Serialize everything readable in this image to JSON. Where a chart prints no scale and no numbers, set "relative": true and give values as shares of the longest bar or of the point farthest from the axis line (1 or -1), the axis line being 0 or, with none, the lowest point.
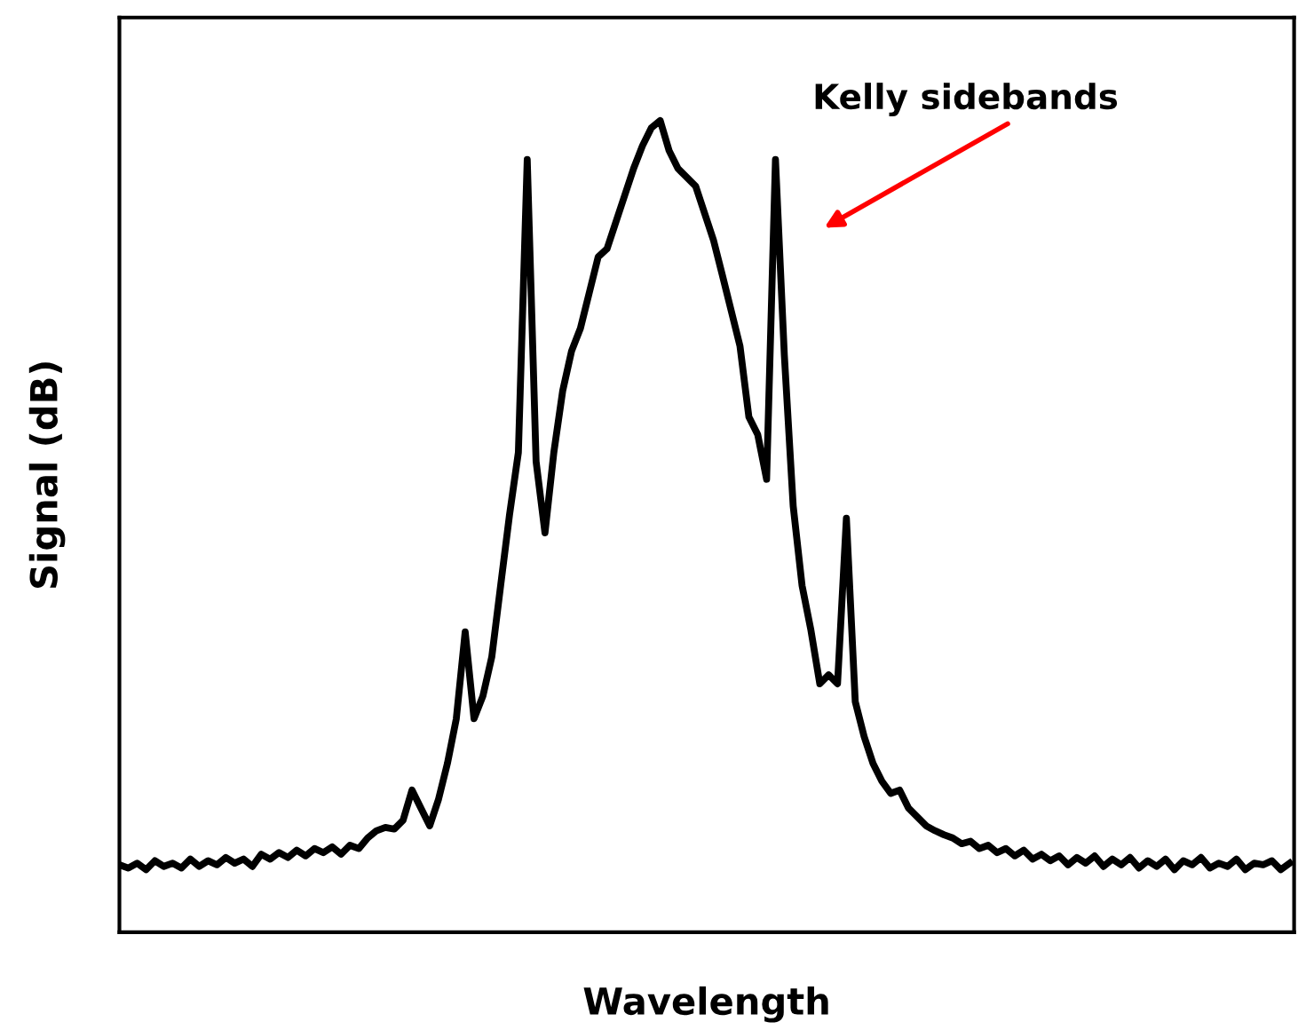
{
  "chart_data": {
    "type": "line",
    "relative": true,
    "xlabel": "Wavelength",
    "ylabel": "Signal (dB)",
    "annotations": [
      "Kelly sidebands"
    ],
    "categories": [
      null,
      null,
      null,
      null,
      null,
      null,
      null,
      null,
      null,
      null,
      null,
      null,
      null,
      null,
      null,
      null,
      null,
      null,
      null,
      null,
      null,
      null,
      null,
      null,
      null,
      null,
      null,
      null,
      null,
      null,
      null,
      null,
      null,
      null,
      null,
      null,
      null,
      null,
      null,
      null,
      null,
      null,
      null,
      null,
      null,
      null,
      null,
      null,
      null,
      null,
      null,
      null,
      null,
      null,
      null,
      null,
      null,
      null,
      null,
      null,
      null,
      null,
      null,
      null,
      null,
      null,
      null,
      null,
      null,
      null,
      null,
      null,
      null,
      null,
      null,
      null,
      null,
      null,
      null,
      null,
      null,
      null,
      null,
      null,
      null,
      null,
      null,
      null,
      null,
      null,
      null,
      null,
      null,
      null,
      null,
      null,
      null,
      null,
      null,
      null,
      null,
      null,
      null,
      null,
      null,
      null,
      null,
      null,
      null,
      null,
      null,
      null,
      null,
      null,
      null,
      null,
      null,
      null,
      null,
      null,
      null,
      null,
      null,
      null,
      null,
      null,
      null,
      null,
      null,
      null,
      null,
      null,
      null
    ],
    "series": [
      {
        "color": "#000000",
        "values": [
          0.083,
          0.079,
          0.085,
          0.077,
          0.088,
          0.081,
          0.085,
          0.079,
          0.09,
          0.081,
          0.088,
          0.083,
          0.092,
          0.085,
          0.09,
          0.081,
          0.096,
          0.09,
          0.098,
          0.092,
          0.101,
          0.094,
          0.103,
          0.098,
          0.105,
          0.096,
          0.107,
          0.103,
          0.116,
          0.125,
          0.129,
          0.127,
          0.138,
          0.175,
          0.153,
          0.131,
          0.164,
          0.208,
          0.263,
          0.37,
          0.263,
          0.291,
          0.339,
          0.427,
          0.514,
          0.591,
          0.952,
          0.58,
          0.492,
          0.591,
          0.667,
          0.716,
          0.744,
          0.788,
          0.832,
          0.842,
          0.875,
          0.908,
          0.941,
          0.969,
          0.991,
          1.0,
          0.963,
          0.941,
          0.93,
          0.919,
          0.886,
          0.853,
          0.81,
          0.766,
          0.722,
          0.635,
          0.613,
          0.558,
          0.952,
          0.711,
          0.525,
          0.427,
          0.372,
          0.306,
          0.317,
          0.306,
          0.51,
          0.284,
          0.241,
          0.208,
          0.186,
          0.171,
          0.175,
          0.153,
          0.142,
          0.131,
          0.125,
          0.12,
          0.116,
          0.109,
          0.112,
          0.103,
          0.107,
          0.098,
          0.103,
          0.094,
          0.101,
          0.09,
          0.096,
          0.088,
          0.094,
          0.083,
          0.092,
          0.085,
          0.094,
          0.081,
          0.09,
          0.083,
          0.092,
          0.079,
          0.088,
          0.081,
          0.09,
          0.077,
          0.088,
          0.083,
          0.092,
          0.079,
          0.085,
          0.081,
          0.09,
          0.077,
          0.085,
          0.083,
          0.088,
          0.077,
          0.085
        ]
      }
    ]
  }
}
